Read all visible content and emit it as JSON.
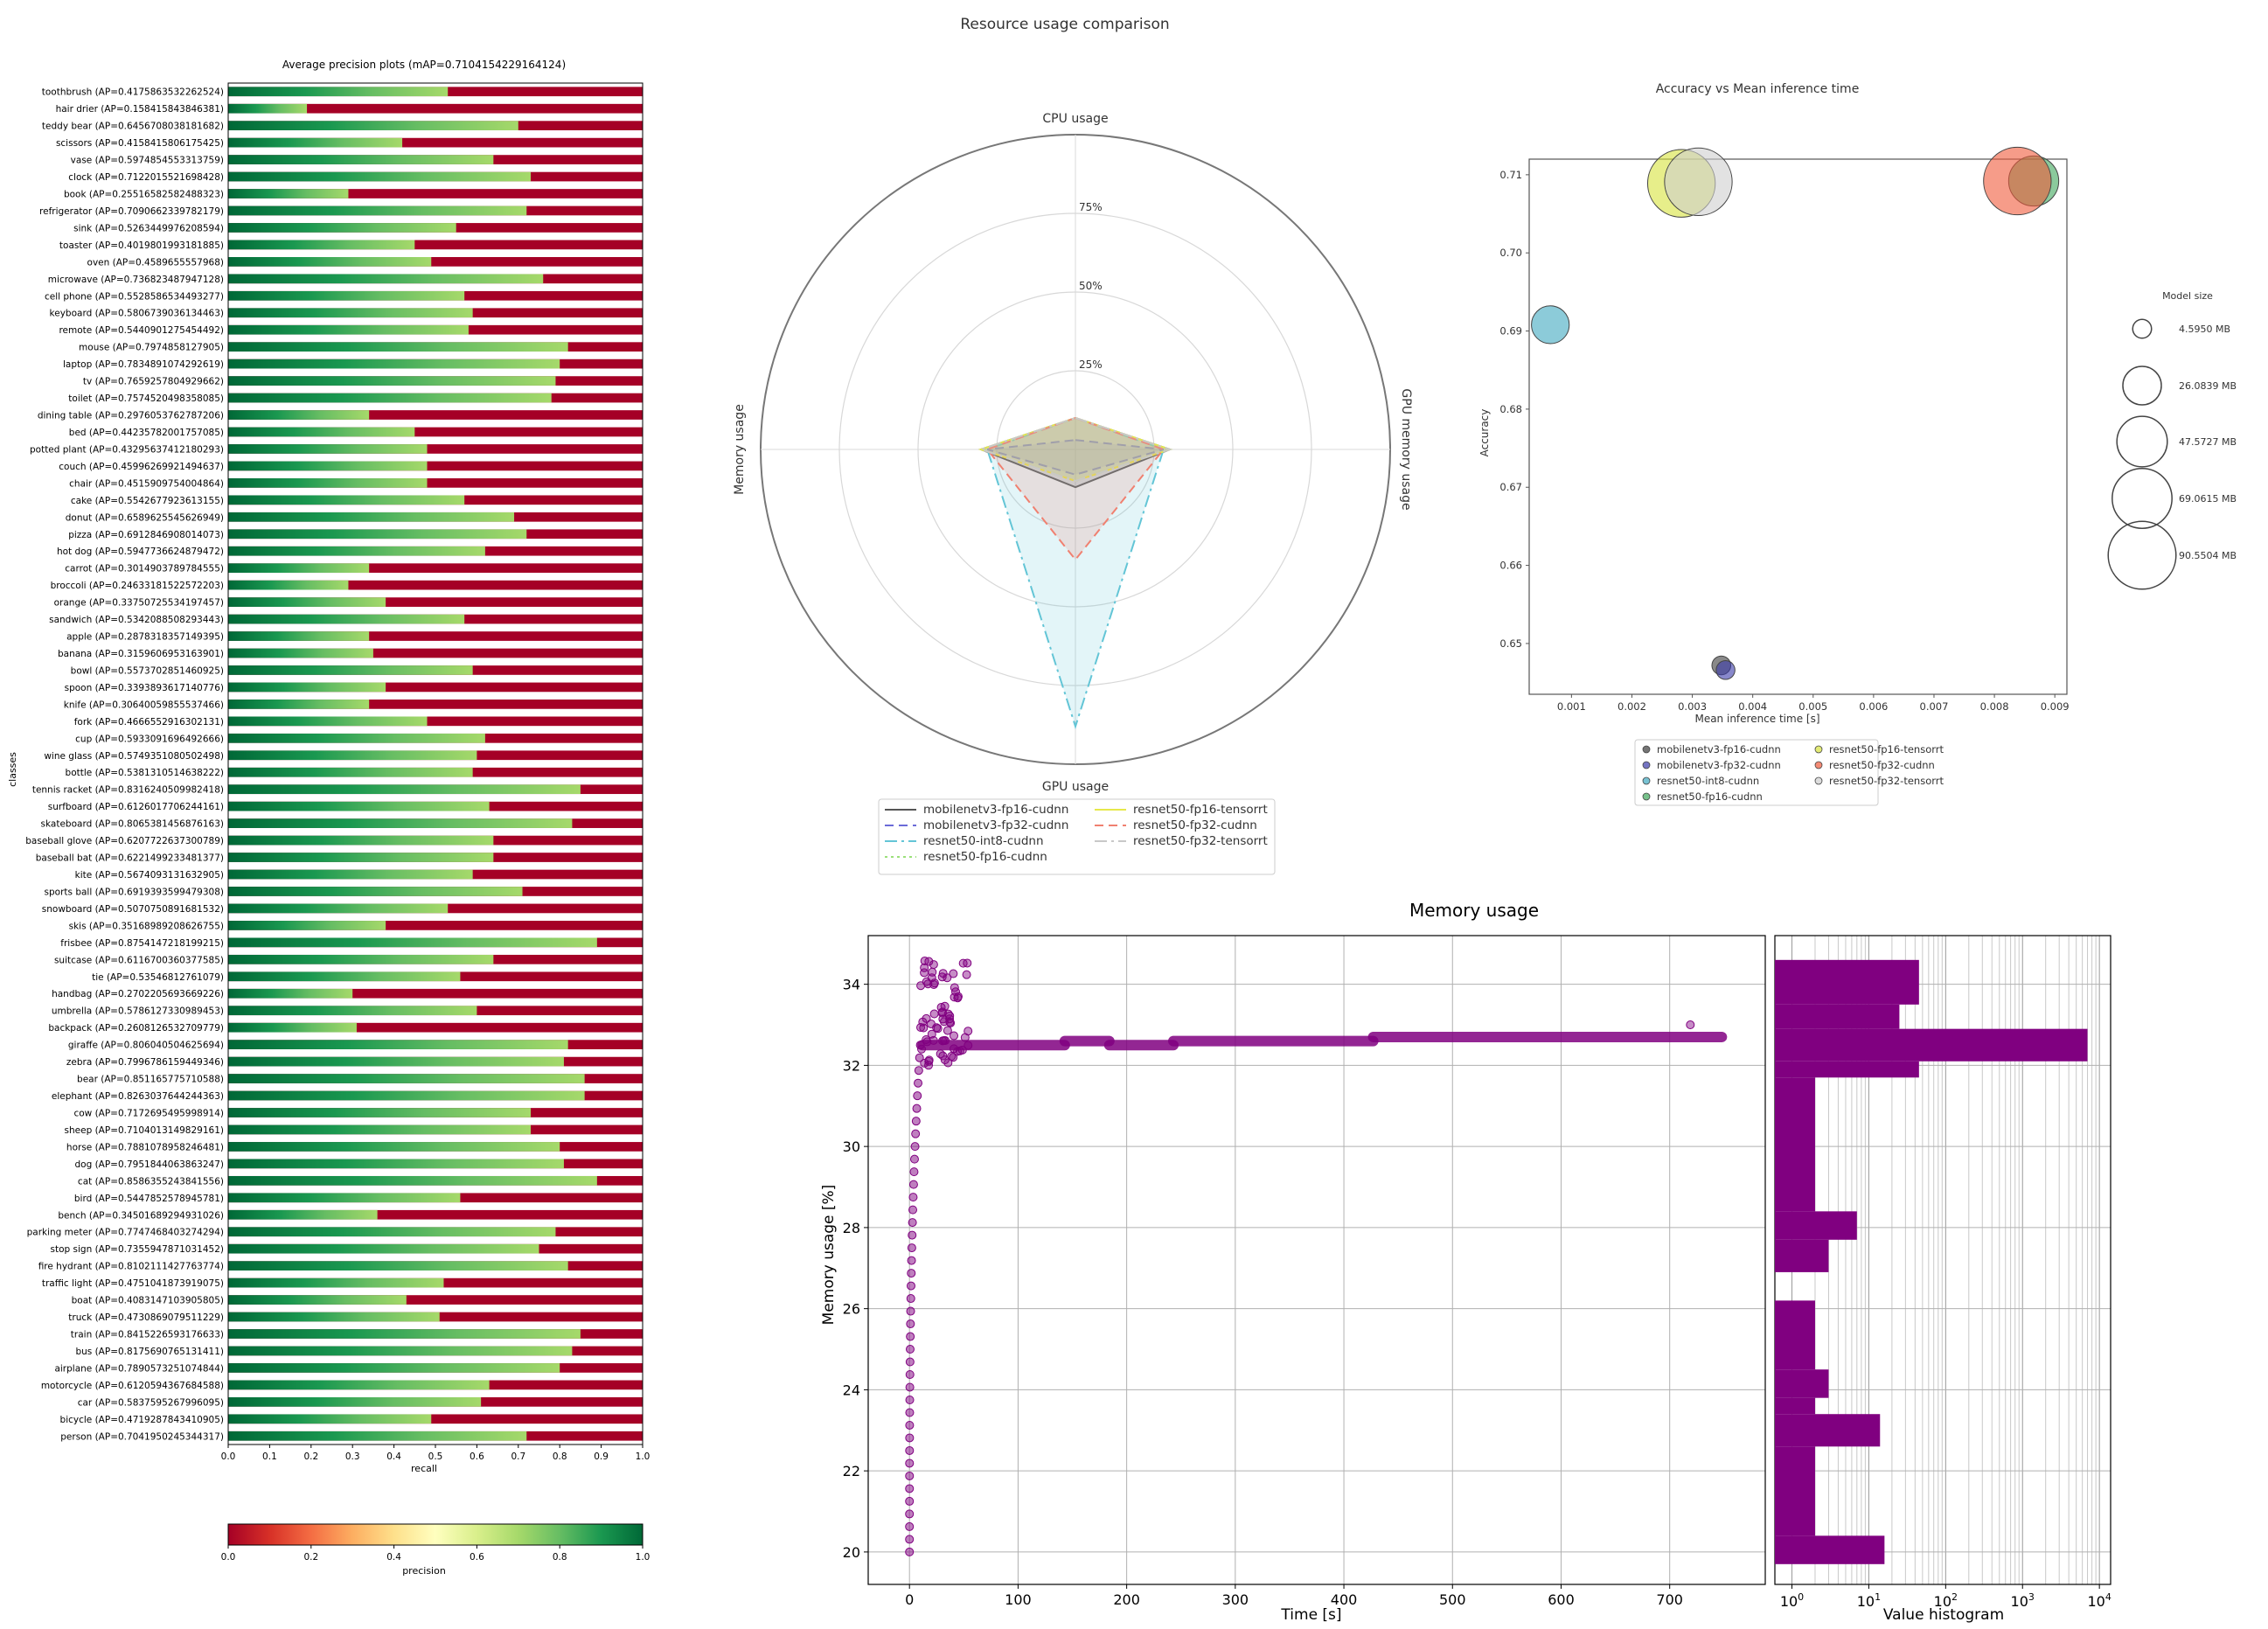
{
  "chart_data": [
    {
      "type": "bar",
      "title": "Average precision plots (mAP=0.7104154229164124)",
      "xlabel": "recall",
      "ylabel": "classes",
      "xlim": [
        0,
        1
      ],
      "xticks": [
        "0.0",
        "0.1",
        "0.2",
        "0.3",
        "0.4",
        "0.5",
        "0.6",
        "0.7",
        "0.8",
        "0.9",
        "1.0"
      ],
      "colorbar": {
        "label": "precision",
        "ticks": [
          "0.0",
          "0.2",
          "0.4",
          "0.6",
          "0.8",
          "1.0"
        ]
      },
      "categories": [
        "toothbrush (AP=0.4175863532262524)",
        "hair drier (AP=0.158415843846381)",
        "teddy bear (AP=0.6456708038181682)",
        "scissors (AP=0.4158415806175425)",
        "vase (AP=0.5974854553313759)",
        "clock (AP=0.7122015521698428)",
        "book (AP=0.25516582582488323)",
        "refrigerator (AP=0.7090662339782179)",
        "sink (AP=0.5263449976208594)",
        "toaster (AP=0.4019801993181885)",
        "oven (AP=0.4589655557968)",
        "microwave (AP=0.736823487947128)",
        "cell phone (AP=0.5528586534493277)",
        "keyboard (AP=0.5806739036134463)",
        "remote (AP=0.5440901275454492)",
        "mouse (AP=0.7974858127905)",
        "laptop (AP=0.7834891074292619)",
        "tv (AP=0.7659257804929662)",
        "toilet (AP=0.7574520498358085)",
        "dining table (AP=0.2976053762787206)",
        "bed (AP=0.4423578200175708​5)",
        "potted plant (AP=0.4329563741218029​3)",
        "couch (AP=0.4599626992149463​7)",
        "chair (AP=0.4515909754004864)",
        "cake (AP=0.5542677923613155)",
        "donut (AP=0.6589625545626949)",
        "pizza (AP=0.6912846908014073)",
        "hot dog (AP=0.5947736624879472)",
        "carrot (AP=0.3014903789784555)",
        "broccoli (AP=0.2463318152257220​3)",
        "orange (AP=0.3375072553419745​7)",
        "sandwich (AP=0.5342088508293443)",
        "apple (AP=0.2878318357149395)",
        "banana (AP=0.3159606953163901)",
        "bowl (AP=0.5573702851460925)",
        "spoon (AP=0.3393893617140776)",
        "knife (AP=0.3064005985553746​6)",
        "fork (AP=0.4666552916302131)",
        "cup (AP=0.5933091696492666)",
        "wine glass (AP=0.5749351080502498)",
        "bottle (AP=0.5381310514638222)",
        "tennis racket (AP=0.8316240509982418)",
        "surfboard (AP=0.6126017706244161)",
        "skateboard (AP=0.8065381456876163)",
        "baseball glove (AP=0.6207722637300789)",
        "baseball bat (AP=0.6221499233481377)",
        "kite (AP=0.5674093131632905)",
        "sports ball (AP=0.6919393599479308)",
        "snowboard (AP=0.5070750891681532)",
        "skis (AP=0.3516898920862675​5)",
        "frisbee (AP=0.8754147218199215)",
        "suitcase (AP=0.6116700360377585)",
        "tie (AP=0.5354681276107​9)",
        "handbag (AP=0.2702205693669226)",
        "umbrella (AP=0.5786127330989453)",
        "backpack (AP=0.2608126532709779)",
        "giraffe (AP=0.8060405046256​94)",
        "zebra (AP=0.7996786159449346)",
        "bear (AP=0.8511657757105​88)",
        "elephant (AP=0.8263037644244363)",
        "cow (AP=0.7172695495998914)",
        "sheep (AP=0.7104013149829161)",
        "horse (AP=0.7881078958246481)",
        "dog (AP=0.7951844063863247)",
        "cat (AP=0.8586355243841556)",
        "bird (AP=0.5447852578945781)",
        "bench (AP=0.3450168929493102​6)",
        "parking meter (AP=0.7747468403274294)",
        "stop sign (AP=0.7355947871031452)",
        "fire hydrant (AP=0.8102111427763774)",
        "traffic light (AP=0.4751041873919075)",
        "boat (AP=0.4083147103905805)",
        "truck (AP=0.4730869079511229)",
        "train (AP=0.8415226593176633)",
        "bus (AP=0.8175690765131411)",
        "airplane (AP=0.7890573251074844)",
        "motorcycle (AP=0.6120594367684588)",
        "car (AP=0.5837595267996095)",
        "bicycle (AP=0.4719287843410905)",
        "person (AP=0.7041950245344317)"
      ],
      "values": [
        0.53,
        0.19,
        0.7,
        0.42,
        0.64,
        0.73,
        0.29,
        0.72,
        0.55,
        0.45,
        0.49,
        0.76,
        0.57,
        0.59,
        0.58,
        0.82,
        0.8,
        0.79,
        0.78,
        0.34,
        0.45,
        0.48,
        0.48,
        0.48,
        0.57,
        0.69,
        0.72,
        0.62,
        0.34,
        0.29,
        0.38,
        0.57,
        0.34,
        0.35,
        0.59,
        0.38,
        0.34,
        0.48,
        0.62,
        0.6,
        0.59,
        0.85,
        0.63,
        0.83,
        0.64,
        0.64,
        0.59,
        0.71,
        0.53,
        0.38,
        0.89,
        0.64,
        0.56,
        0.3,
        0.6,
        0.31,
        0.82,
        0.81,
        0.86,
        0.86,
        0.73,
        0.73,
        0.8,
        0.81,
        0.89,
        0.56,
        0.36,
        0.79,
        0.75,
        0.82,
        0.52,
        0.43,
        0.51,
        0.85,
        0.83,
        0.8,
        0.63,
        0.61,
        0.49,
        0.72
      ]
    },
    {
      "type": "radar",
      "title": "Resource usage comparison",
      "axes": [
        "CPU usage",
        "GPU memory usage",
        "GPU usage",
        "Memory usage"
      ],
      "rings": [
        "25%",
        "50%",
        "75%"
      ],
      "series": [
        {
          "name": "mobilenetv3-fp16-cudnn",
          "color": "#555555",
          "dash": "",
          "values": [
            10,
            30,
            12,
            30
          ]
        },
        {
          "name": "mobilenetv3-fp32-cudnn",
          "color": "#6a6ad8",
          "dash": "10,6",
          "values": [
            3,
            28,
            8,
            28
          ]
        },
        {
          "name": "resnet50-int8-cudnn",
          "color": "#63c5d6",
          "dash": "14,5,3,5",
          "values": [
            10,
            28,
            88,
            28
          ]
        },
        {
          "name": "resnet50-fp16-cudnn",
          "color": "#9be07a",
          "dash": "3,4",
          "values": [
            10,
            30,
            10,
            30
          ]
        },
        {
          "name": "resnet50-fp16-tensorrt",
          "color": "#e6e84a",
          "dash": "",
          "values": [
            10,
            30,
            10,
            30
          ]
        },
        {
          "name": "resnet50-fp32-cudnn",
          "color": "#f08070",
          "dash": "10,6",
          "values": [
            10,
            28,
            35,
            28
          ]
        },
        {
          "name": "resnet50-fp32-tensorrt",
          "color": "#c8c8c8",
          "dash": "14,5,3,5",
          "values": [
            10,
            30,
            10,
            30
          ]
        }
      ]
    },
    {
      "type": "scatter",
      "title": "Accuracy vs Mean inference time",
      "xlabel": "Mean inference time [s]",
      "ylabel": "Accuracy",
      "xlim": [
        0.0003,
        0.0092
      ],
      "ylim": [
        0.6435,
        0.712
      ],
      "xticks": [
        0.001,
        0.002,
        0.003,
        0.004,
        0.005,
        0.006,
        0.007,
        0.008,
        0.009
      ],
      "yticks": [
        0.65,
        0.66,
        0.67,
        0.68,
        0.69,
        0.7,
        0.71
      ],
      "size_legend_title": "Model size",
      "size_legend": [
        "4.5950 MB",
        "26.0839 MB",
        "47.5727 MB",
        "69.0615 MB",
        "90.5504 MB"
      ],
      "series": [
        {
          "name": "mobilenetv3-fp16-cudnn",
          "color": "#3b3b3b",
          "x": 0.00348,
          "y": 0.6472,
          "size_mb": 4.6
        },
        {
          "name": "mobilenetv3-fp32-cudnn",
          "color": "#3939a8",
          "x": 0.00355,
          "y": 0.6466,
          "size_mb": 4.6
        },
        {
          "name": "resnet50-int8-cudnn",
          "color": "#3fa8c0",
          "x": 0.00065,
          "y": 0.6908,
          "size_mb": 25.0
        },
        {
          "name": "resnet50-fp16-cudnn",
          "color": "#3da65a",
          "x": 0.00865,
          "y": 0.7092,
          "size_mb": 47.0
        },
        {
          "name": "resnet50-fp16-tensorrt",
          "color": "#d7e33c",
          "x": 0.00282,
          "y": 0.7089,
          "size_mb": 90.0
        },
        {
          "name": "resnet50-fp32-cudnn",
          "color": "#f05a3a",
          "x": 0.00838,
          "y": 0.7092,
          "size_mb": 90.0
        },
        {
          "name": "resnet50-fp32-tensorrt",
          "color": "#cfcfcf",
          "x": 0.0031,
          "y": 0.7091,
          "size_mb": 90.0
        }
      ]
    },
    {
      "type": "scatter",
      "title": "Memory usage",
      "xlabel": "Time [s]",
      "ylabel": "Memory usage [%]",
      "xlim": [
        -38,
        788
      ],
      "ylim": [
        19.2,
        35.2
      ],
      "xticks": [
        0,
        100,
        200,
        300,
        400,
        500,
        600,
        700
      ],
      "yticks": [
        20,
        22,
        24,
        26,
        28,
        30,
        32,
        34
      ],
      "color": "#800080",
      "plateau_segments": [
        {
          "x": [
            12,
            143
          ],
          "y": 32.5
        },
        {
          "x": [
            143,
            184
          ],
          "y": 32.6
        },
        {
          "x": [
            184,
            243
          ],
          "y": 32.5
        },
        {
          "x": [
            243,
            427
          ],
          "y": 32.6
        },
        {
          "x": [
            427,
            748
          ],
          "y": 32.7
        }
      ],
      "ramp": {
        "t": [
          0,
          10
        ],
        "y": [
          20,
          32.5
        ]
      },
      "burst": {
        "t": [
          10,
          56
        ],
        "y": [
          32,
          34.6
        ]
      }
    },
    {
      "type": "histogram",
      "title": "",
      "xlabel": "Value histogram",
      "xscale": "log",
      "xlim": [
        0.6,
        14000
      ],
      "ylim": [
        19.2,
        35.2
      ],
      "xticks": [
        "10^0",
        "10^1",
        "10^2",
        "10^3",
        "10^4"
      ],
      "bins": [
        {
          "y0": 33.5,
          "y1": 34.6,
          "count": 45
        },
        {
          "y0": 32.9,
          "y1": 33.5,
          "count": 25
        },
        {
          "y0": 32.1,
          "y1": 32.9,
          "count": 7000
        },
        {
          "y0": 31.7,
          "y1": 32.1,
          "count": 45
        },
        {
          "y0": 28.4,
          "y1": 31.7,
          "count": 2
        },
        {
          "y0": 27.7,
          "y1": 28.4,
          "count": 7
        },
        {
          "y0": 26.9,
          "y1": 27.7,
          "count": 3
        },
        {
          "y0": 26.2,
          "y1": 26.9,
          "count": 0
        },
        {
          "y0": 24.5,
          "y1": 26.2,
          "count": 2
        },
        {
          "y0": 23.8,
          "y1": 24.5,
          "count": 3
        },
        {
          "y0": 23.4,
          "y1": 23.8,
          "count": 2
        },
        {
          "y0": 22.6,
          "y1": 23.4,
          "count": 14
        },
        {
          "y0": 20.4,
          "y1": 22.6,
          "count": 2
        },
        {
          "y0": 19.7,
          "y1": 20.4,
          "count": 16
        }
      ]
    }
  ]
}
